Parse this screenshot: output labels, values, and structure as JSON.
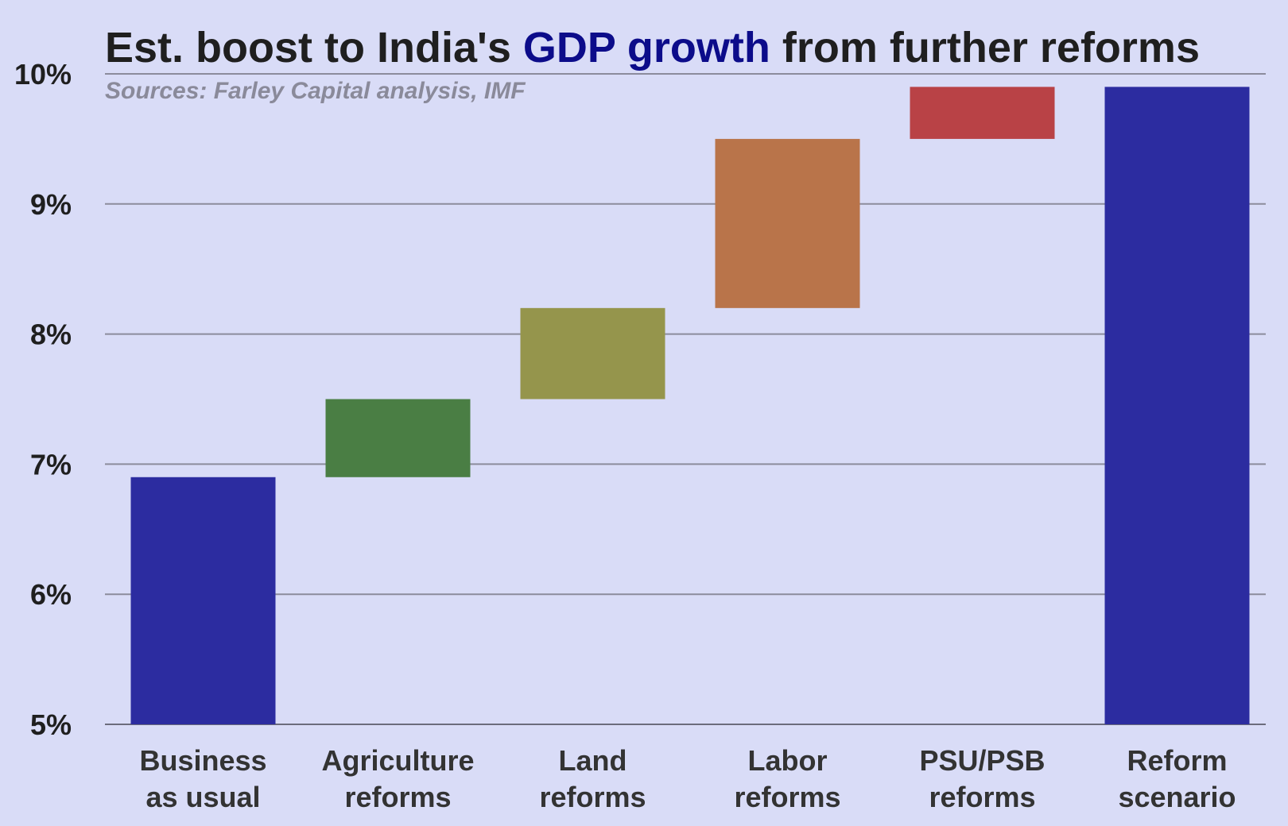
{
  "chart_data": {
    "type": "bar",
    "subtype": "waterfall",
    "title": {
      "before": "Est. boost to India's ",
      "accent": "GDP growth",
      "after": " from further reforms"
    },
    "subtitle": "Sources: Farley Capital analysis, IMF",
    "xlabel": "",
    "ylabel": "",
    "ylim": [
      5,
      10
    ],
    "yticks": [
      5,
      6,
      7,
      8,
      9,
      10
    ],
    "ytick_labels": [
      "5%",
      "6%",
      "7%",
      "8%",
      "9%",
      "10%"
    ],
    "grid": true,
    "legend": "none",
    "categories": [
      [
        "Business",
        "as usual"
      ],
      [
        "Agriculture",
        "reforms"
      ],
      [
        "Land",
        "reforms"
      ],
      [
        "Labor",
        "reforms"
      ],
      [
        "PSU/PSB",
        "reforms"
      ],
      [
        "Reform",
        "scenario"
      ]
    ],
    "bars": [
      {
        "start": 5.0,
        "end": 6.9,
        "color": "#2c2ca0"
      },
      {
        "start": 6.9,
        "end": 7.5,
        "color": "#4a7e44"
      },
      {
        "start": 7.5,
        "end": 8.2,
        "color": "#95954c"
      },
      {
        "start": 8.2,
        "end": 9.5,
        "color": "#b9744a"
      },
      {
        "start": 9.5,
        "end": 9.9,
        "color": "#b94246"
      },
      {
        "start": 5.0,
        "end": 9.9,
        "color": "#2c2ca0"
      }
    ]
  }
}
